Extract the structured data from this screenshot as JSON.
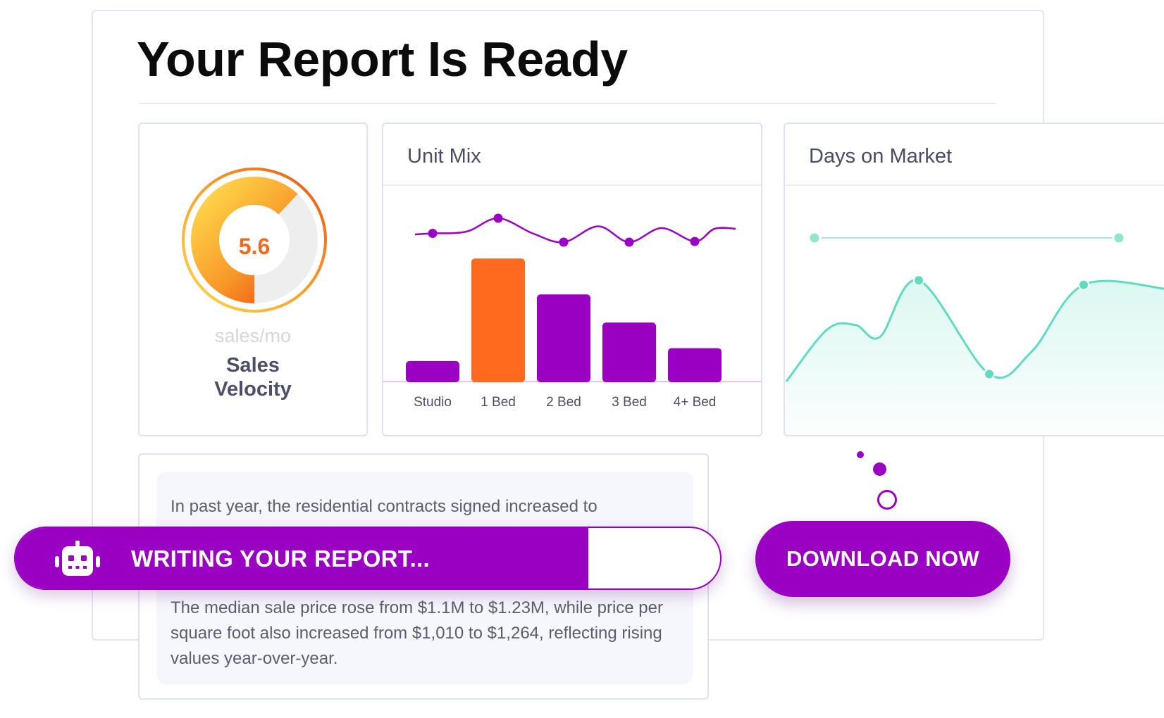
{
  "page": {
    "title": "Your Report Is Ready"
  },
  "velocity": {
    "value": "5.6",
    "unit": "sales/mo",
    "label_line1": "Sales",
    "label_line2": "Velocity",
    "progress_fraction": 0.62
  },
  "unit_mix": {
    "title": "Unit Mix"
  },
  "days_on_market": {
    "title": "Days on Market"
  },
  "summary": {
    "paragraph_1": "In past year, the residential contracts signed increased to",
    "paragraph_2": "The median sale price rose from $1.1M to $1.23M, while price per square foot also increased from $1,010 to $1,264, reflecting rising values year-over-year."
  },
  "status": {
    "text": "WRITING YOUR REPORT...",
    "progress_fraction": 0.81,
    "icon": "robot-icon"
  },
  "actions": {
    "download_label": "DOWNLOAD NOW"
  },
  "colors": {
    "accent": "#9a00c2",
    "highlight": "#ff6a1f",
    "teal": "#5fdcc0",
    "gauge_start": "#ffd84a",
    "gauge_end": "#f25a10"
  },
  "chart_data": [
    {
      "type": "bar",
      "title": "Unit Mix",
      "categories": [
        "Studio",
        "1 Bed",
        "2 Bed",
        "3 Bed",
        "4+ Bed"
      ],
      "values": [
        8,
        48,
        34,
        23,
        13
      ],
      "highlight_index": 1,
      "overlay_line": [
        0.45,
        0.88,
        0.2,
        0.2,
        0.22
      ],
      "ylim": [
        0,
        50
      ]
    },
    {
      "type": "area",
      "title": "Days on Market",
      "series": [
        {
          "values": [
            0.0,
            0.35,
            0.38,
            0.3,
            0.68,
            0.05,
            0.2,
            0.65,
            0.62
          ]
        }
      ],
      "target_line": 0.9
    }
  ]
}
